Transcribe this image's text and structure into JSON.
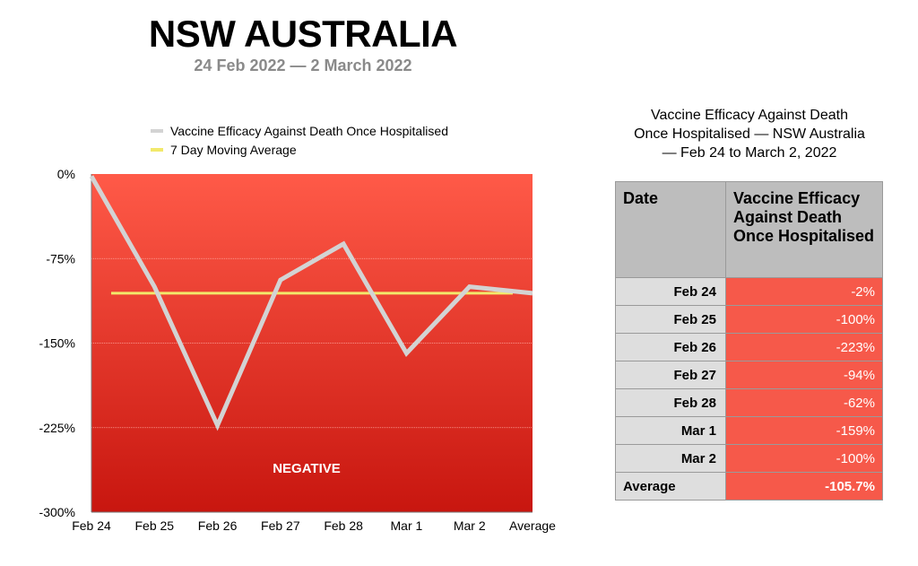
{
  "header": {
    "title": "NSW AUSTRALIA",
    "subtitle": "24 Feb 2022 — 2 March 2022"
  },
  "chart_data": {
    "type": "line",
    "categories": [
      "Feb 24",
      "Feb 25",
      "Feb 26",
      "Feb 27",
      "Feb 28",
      "Mar 1",
      "Mar 2",
      "Average"
    ],
    "series": [
      {
        "name": "Vaccine Efficacy Against Death Once Hospitalised",
        "values": [
          -2,
          -100,
          -223,
          -94,
          -62,
          -159,
          -100,
          -105.7
        ],
        "color": "#d3d3d3"
      },
      {
        "name": "7 Day Moving Average",
        "values": [
          -105.7,
          -105.7,
          -105.7,
          -105.7,
          -105.7,
          -105.7,
          -105.7,
          -105.7
        ],
        "color": "#f2e96b"
      }
    ],
    "ylim": [
      -300,
      0
    ],
    "yticks": [
      0,
      -75,
      -150,
      -225,
      -300
    ],
    "ytick_labels": [
      "0%",
      "-75%",
      "-150%",
      "-225%",
      "-300%"
    ],
    "annotation": "NEGATIVE",
    "legend_position": "top",
    "background": "red gradient"
  },
  "table": {
    "title_lines": [
      "Vaccine Efficacy Against Death",
      "Once Hospitalised — NSW Australia",
      "— Feb 24 to March 2, 2022"
    ],
    "headers": [
      "Date",
      "Vaccine Efficacy Against Death Once Hospitalised"
    ],
    "rows": [
      {
        "date": "Feb 24",
        "value": "-2%"
      },
      {
        "date": "Feb 25",
        "value": "-100%"
      },
      {
        "date": "Feb 26",
        "value": "-223%"
      },
      {
        "date": "Feb 27",
        "value": "-94%"
      },
      {
        "date": "Feb 28",
        "value": "-62%"
      },
      {
        "date": "Mar 1",
        "value": "-159%"
      },
      {
        "date": "Mar 2",
        "value": "-100%"
      }
    ],
    "average": {
      "label": "Average",
      "value": "-105.7%"
    }
  },
  "colors": {
    "negative_top": "#ff5a48",
    "negative_bottom": "#c8160f",
    "table_header_bg": "#bdbdbd",
    "table_date_bg": "#dedede",
    "table_value_bg": "#f6594a"
  }
}
